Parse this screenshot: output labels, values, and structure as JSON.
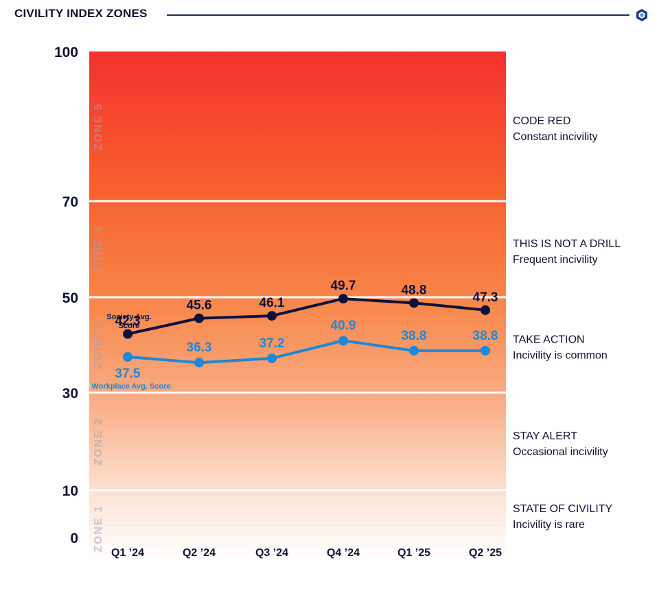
{
  "header": {
    "title": "CIVILITY INDEX ZONES",
    "logo_icon": "hexagon-logo-icon"
  },
  "chart_data": {
    "type": "line",
    "title": "CIVILITY INDEX ZONES",
    "x": [
      "Q1 ’24",
      "Q2 ’24",
      "Q3 ’24",
      "Q4 ’24",
      "Q1 ’25",
      "Q2 ’25"
    ],
    "ylim": [
      0,
      100
    ],
    "y_ticks": [
      "0",
      "10",
      "30",
      "50",
      "70",
      "100"
    ],
    "grid": false,
    "zones": [
      {
        "name": "ZONE 1",
        "from": 0,
        "to": 10,
        "label": "STATE OF CIVILITY",
        "description": "Incivility is rare"
      },
      {
        "name": "ZONE 2",
        "from": 10,
        "to": 30,
        "label": "STAY ALERT",
        "description": "Occasional incivility"
      },
      {
        "name": "ZONE 3",
        "from": 30,
        "to": 50,
        "label": "TAKE ACTION",
        "description": "Incivility is common"
      },
      {
        "name": "ZONE 4",
        "from": 50,
        "to": 70,
        "label": "THIS IS NOT A DRILL",
        "description": "Frequent incivility"
      },
      {
        "name": "ZONE 5",
        "from": 70,
        "to": 100,
        "label": "CODE RED",
        "description": "Constant incivility"
      }
    ],
    "series": [
      {
        "name": "Society Avg. Score",
        "values": [
          42.3,
          45.6,
          46.1,
          49.7,
          48.8,
          47.3
        ],
        "labels": [
          "42.3",
          "45.6",
          "46.1",
          "49.7",
          "48.8",
          "47.3"
        ],
        "color": "#0d1140"
      },
      {
        "name": "Workplace Avg. Score",
        "values": [
          37.5,
          36.3,
          37.2,
          40.9,
          38.8,
          38.8
        ],
        "labels": [
          "37.5",
          "36.3",
          "37.2",
          "40.9",
          "38.8",
          "38.8"
        ],
        "color": "#1e88d8"
      }
    ],
    "series_legend": [
      "Society Avg.",
      "Score"
    ]
  },
  "colors": {
    "zone_top": "#f4312f",
    "zone_mid": "#f7733a",
    "zone_low": "#ffffff",
    "axis_text": "#0f1330",
    "zone_watermark": "#a0a0b4"
  }
}
